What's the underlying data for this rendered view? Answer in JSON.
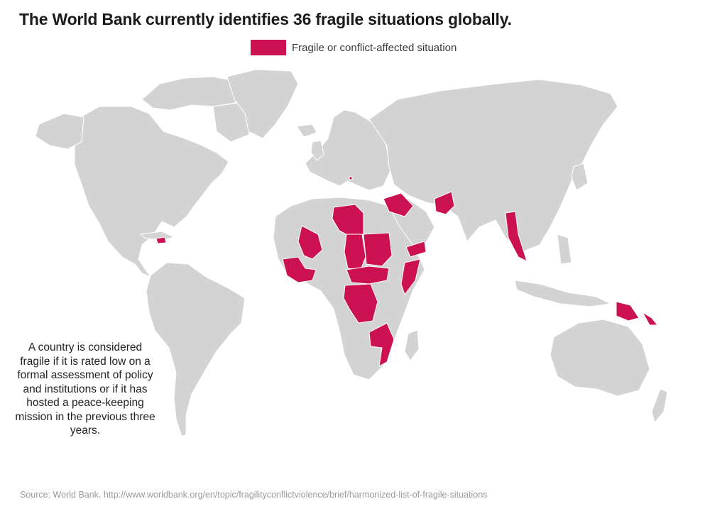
{
  "title": "The World Bank currently identifies 36 fragile situations globally.",
  "legend": {
    "label": "Fragile or conflict-affected situation",
    "color": "#cc1152"
  },
  "land_color": "#d3d3d3",
  "note": "A country is considered fragile if it is rated low on a formal assessment of policy and institutions or if it has hosted a peace-keeping mission in the previous three years.",
  "source": "Source: World Bank. http://www.worldbank.org/en/topic/fragilityconflictviolence/brief/harmonized-list-of-fragile-situations"
}
